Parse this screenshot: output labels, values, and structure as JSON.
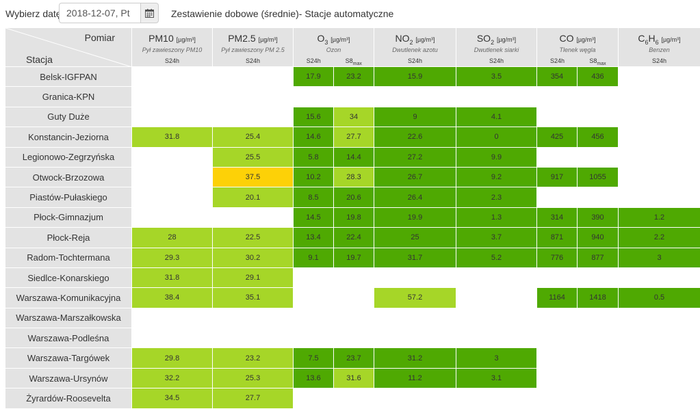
{
  "topbar": {
    "date_label": "Wybierz datę:",
    "date_value": "2018-12-07, Pt",
    "calendar_icon": "calendar-icon",
    "report_title": "Zestawienie dobowe (średnie)- Stacje automatyczne"
  },
  "header": {
    "pomiar": "Pomiar",
    "stacja": "Stacja",
    "unit": "[µg/m³]",
    "pollutants": [
      {
        "name": "PM10",
        "desc": "Pył zawieszony PM10",
        "agg": [
          "S24h"
        ]
      },
      {
        "name": "PM2.5",
        "desc": "Pył zawieszony PM 2.5",
        "agg": [
          "S24h"
        ]
      },
      {
        "name_main": "O",
        "name_sub": "3",
        "desc": "Ozon",
        "agg": [
          "S24h",
          "S8max"
        ]
      },
      {
        "name_main": "NO",
        "name_sub": "2",
        "desc": "Dwutlenek azotu",
        "agg": [
          "S24h"
        ]
      },
      {
        "name_main": "SO",
        "name_sub": "2",
        "desc": "Dwutlenek siarki",
        "agg": [
          "S24h"
        ]
      },
      {
        "name": "CO",
        "desc": "Tlenek węgla",
        "agg": [
          "S24h",
          "S8max"
        ]
      },
      {
        "name_c": "C",
        "sub1": "6",
        "name_h": "H",
        "sub2": "6",
        "desc": "Benzen",
        "agg": [
          "S24h"
        ]
      }
    ],
    "s8_main": "S8",
    "s8_sub": "max"
  },
  "colors": {
    "good": "#4fa902",
    "fair": "#a6d628",
    "moderate": "#fdd107",
    "header": "#e3e3e3"
  },
  "rows": [
    {
      "station": "Belsk-IGFPAN",
      "cells": [
        [
          "",
          ""
        ],
        [
          "",
          ""
        ],
        [
          "17.9",
          "g1"
        ],
        [
          "23.2",
          "g1"
        ],
        [
          "15.9",
          "g1"
        ],
        [
          "3.5",
          "g1"
        ],
        [
          "354",
          "g1"
        ],
        [
          "436",
          "g1"
        ],
        [
          "",
          ""
        ]
      ]
    },
    {
      "station": "Granica-KPN",
      "cells": [
        [
          "",
          ""
        ],
        [
          "",
          ""
        ],
        [
          "",
          ""
        ],
        [
          "",
          ""
        ],
        [
          "",
          ""
        ],
        [
          "",
          ""
        ],
        [
          "",
          ""
        ],
        [
          "",
          ""
        ],
        [
          "",
          ""
        ]
      ]
    },
    {
      "station": "Guty Duże",
      "cells": [
        [
          "",
          ""
        ],
        [
          "",
          ""
        ],
        [
          "15.6",
          "g1"
        ],
        [
          "34",
          "g2"
        ],
        [
          "9",
          "g1"
        ],
        [
          "4.1",
          "g1"
        ],
        [
          "",
          ""
        ],
        [
          "",
          ""
        ],
        [
          "",
          ""
        ]
      ]
    },
    {
      "station": "Konstancin-Jeziorna",
      "cells": [
        [
          "31.8",
          "g2"
        ],
        [
          "25.4",
          "g2"
        ],
        [
          "14.6",
          "g1"
        ],
        [
          "27.7",
          "g2"
        ],
        [
          "22.6",
          "g1"
        ],
        [
          "0",
          "g1"
        ],
        [
          "425",
          "g1"
        ],
        [
          "456",
          "g1"
        ],
        [
          "",
          ""
        ]
      ]
    },
    {
      "station": "Legionowo-Zegrzyńska",
      "cells": [
        [
          "",
          ""
        ],
        [
          "25.5",
          "g2"
        ],
        [
          "5.8",
          "g1"
        ],
        [
          "14.4",
          "g1"
        ],
        [
          "27.2",
          "g1"
        ],
        [
          "9.9",
          "g1"
        ],
        [
          "",
          ""
        ],
        [
          "",
          ""
        ],
        [
          "",
          ""
        ]
      ]
    },
    {
      "station": "Otwock-Brzozowa",
      "cells": [
        [
          "",
          ""
        ],
        [
          "37.5",
          "y1"
        ],
        [
          "10.2",
          "g1"
        ],
        [
          "28.3",
          "g2"
        ],
        [
          "26.7",
          "g1"
        ],
        [
          "9.2",
          "g1"
        ],
        [
          "917",
          "g1"
        ],
        [
          "1055",
          "g1"
        ],
        [
          "",
          ""
        ]
      ]
    },
    {
      "station": "Piastów-Pułaskiego",
      "cells": [
        [
          "",
          ""
        ],
        [
          "20.1",
          "g2"
        ],
        [
          "8.5",
          "g1"
        ],
        [
          "20.6",
          "g1"
        ],
        [
          "26.4",
          "g1"
        ],
        [
          "2.3",
          "g1"
        ],
        [
          "",
          ""
        ],
        [
          "",
          ""
        ],
        [
          "",
          ""
        ]
      ]
    },
    {
      "station": "Płock-Gimnazjum",
      "cells": [
        [
          "",
          ""
        ],
        [
          "",
          ""
        ],
        [
          "14.5",
          "g1"
        ],
        [
          "19.8",
          "g1"
        ],
        [
          "19.9",
          "g1"
        ],
        [
          "1.3",
          "g1"
        ],
        [
          "314",
          "g1"
        ],
        [
          "390",
          "g1"
        ],
        [
          "1.2",
          "g1"
        ]
      ]
    },
    {
      "station": "Płock-Reja",
      "cells": [
        [
          "28",
          "g2"
        ],
        [
          "22.5",
          "g2"
        ],
        [
          "13.4",
          "g1"
        ],
        [
          "22.4",
          "g1"
        ],
        [
          "25",
          "g1"
        ],
        [
          "3.7",
          "g1"
        ],
        [
          "871",
          "g1"
        ],
        [
          "940",
          "g1"
        ],
        [
          "2.2",
          "g1"
        ]
      ]
    },
    {
      "station": "Radom-Tochtermana",
      "cells": [
        [
          "29.3",
          "g2"
        ],
        [
          "30.2",
          "g2"
        ],
        [
          "9.1",
          "g1"
        ],
        [
          "19.7",
          "g1"
        ],
        [
          "31.7",
          "g1"
        ],
        [
          "5.2",
          "g1"
        ],
        [
          "776",
          "g1"
        ],
        [
          "877",
          "g1"
        ],
        [
          "3",
          "g1"
        ]
      ]
    },
    {
      "station": "Siedlce-Konarskiego",
      "cells": [
        [
          "31.8",
          "g2"
        ],
        [
          "29.1",
          "g2"
        ],
        [
          "",
          ""
        ],
        [
          "",
          ""
        ],
        [
          "",
          ""
        ],
        [
          "",
          ""
        ],
        [
          "",
          ""
        ],
        [
          "",
          ""
        ],
        [
          "",
          ""
        ]
      ]
    },
    {
      "station": "Warszawa-Komunikacyjna",
      "cells": [
        [
          "38.4",
          "g2"
        ],
        [
          "35.1",
          "g2"
        ],
        [
          "",
          ""
        ],
        [
          "",
          ""
        ],
        [
          "57.2",
          "g2"
        ],
        [
          "",
          ""
        ],
        [
          "1164",
          "g1"
        ],
        [
          "1418",
          "g1"
        ],
        [
          "0.5",
          "g1"
        ]
      ]
    },
    {
      "station": "Warszawa-Marszałkowska",
      "cells": [
        [
          "",
          ""
        ],
        [
          "",
          ""
        ],
        [
          "",
          ""
        ],
        [
          "",
          ""
        ],
        [
          "",
          ""
        ],
        [
          "",
          ""
        ],
        [
          "",
          ""
        ],
        [
          "",
          ""
        ],
        [
          "",
          ""
        ]
      ]
    },
    {
      "station": "Warszawa-Podleśna",
      "cells": [
        [
          "",
          ""
        ],
        [
          "",
          ""
        ],
        [
          "",
          ""
        ],
        [
          "",
          ""
        ],
        [
          "",
          ""
        ],
        [
          "",
          ""
        ],
        [
          "",
          ""
        ],
        [
          "",
          ""
        ],
        [
          "",
          ""
        ]
      ]
    },
    {
      "station": "Warszawa-Targówek",
      "cells": [
        [
          "29.8",
          "g2"
        ],
        [
          "23.2",
          "g2"
        ],
        [
          "7.5",
          "g1"
        ],
        [
          "23.7",
          "g1"
        ],
        [
          "31.2",
          "g1"
        ],
        [
          "3",
          "g1"
        ],
        [
          "",
          ""
        ],
        [
          "",
          ""
        ],
        [
          "",
          ""
        ]
      ]
    },
    {
      "station": "Warszawa-Ursynów",
      "cells": [
        [
          "32.2",
          "g2"
        ],
        [
          "25.3",
          "g2"
        ],
        [
          "13.6",
          "g1"
        ],
        [
          "31.6",
          "g2"
        ],
        [
          "11.2",
          "g1"
        ],
        [
          "3.1",
          "g1"
        ],
        [
          "",
          ""
        ],
        [
          "",
          ""
        ],
        [
          "",
          ""
        ]
      ]
    },
    {
      "station": "Żyrardów-Roosevelta",
      "cells": [
        [
          "34.5",
          "g2"
        ],
        [
          "27.7",
          "g2"
        ],
        [
          "",
          ""
        ],
        [
          "",
          ""
        ],
        [
          "",
          ""
        ],
        [
          "",
          ""
        ],
        [
          "",
          ""
        ],
        [
          "",
          ""
        ],
        [
          "",
          ""
        ]
      ]
    }
  ]
}
